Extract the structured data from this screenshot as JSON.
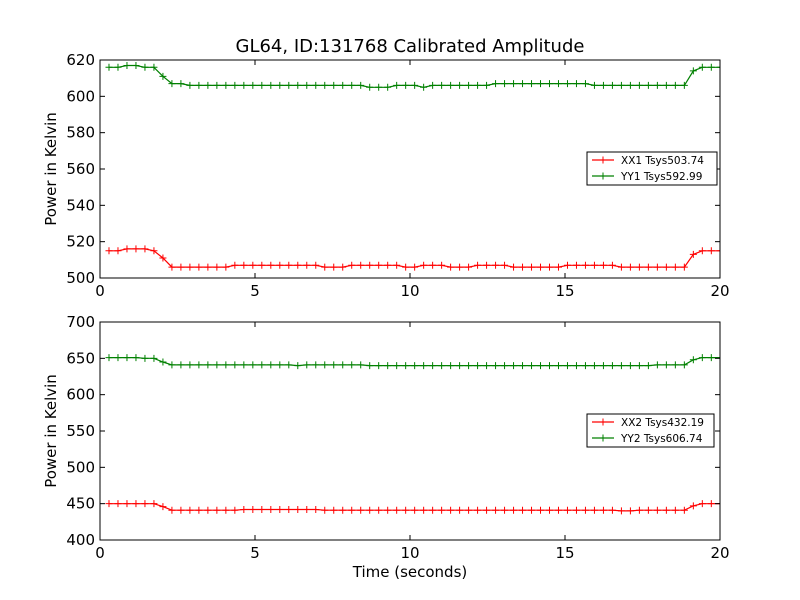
{
  "figure": {
    "title": "GL64, ID:131768 Calibrated Amplitude",
    "xlabel": "Time (seconds)"
  },
  "chart_data": [
    {
      "type": "line",
      "title": "GL64, ID:131768 Calibrated Amplitude",
      "xlabel": "",
      "ylabel": "Power in Kelvin",
      "xlim": [
        0,
        20
      ],
      "ylim": [
        500,
        620
      ],
      "xticks": [
        0,
        5,
        10,
        15,
        20
      ],
      "yticks": [
        500,
        520,
        540,
        560,
        580,
        600,
        620
      ],
      "grid": false,
      "legend_position": "center-right",
      "marker": "plus",
      "x": [
        0.29,
        0.58,
        0.87,
        1.16,
        1.45,
        1.74,
        2.03,
        2.32,
        2.61,
        2.9,
        3.19,
        3.48,
        3.77,
        4.06,
        4.35,
        4.64,
        4.93,
        5.22,
        5.51,
        5.8,
        6.09,
        6.38,
        6.67,
        6.96,
        7.25,
        7.54,
        7.83,
        8.12,
        8.41,
        8.7,
        8.99,
        9.28,
        9.57,
        9.86,
        10.15,
        10.44,
        10.73,
        11.02,
        11.31,
        11.6,
        11.89,
        12.18,
        12.47,
        12.76,
        13.05,
        13.34,
        13.63,
        13.92,
        14.21,
        14.5,
        14.79,
        15.08,
        15.37,
        15.66,
        15.95,
        16.24,
        16.53,
        16.82,
        17.11,
        17.4,
        17.69,
        17.98,
        18.27,
        18.56,
        18.85,
        19.14,
        19.43,
        19.72,
        20.0
      ],
      "series": [
        {
          "name": "XX1 Tsys503.74",
          "color": "#ff0000",
          "values": [
            515,
            515,
            516,
            516,
            516,
            515,
            511,
            506,
            506,
            506,
            506,
            506,
            506,
            506,
            507,
            507,
            507,
            507,
            507,
            507,
            507,
            507,
            507,
            507,
            506,
            506,
            506,
            507,
            507,
            507,
            507,
            507,
            507,
            506,
            506,
            507,
            507,
            507,
            506,
            506,
            506,
            507,
            507,
            507,
            507,
            506,
            506,
            506,
            506,
            506,
            506,
            507,
            507,
            507,
            507,
            507,
            507,
            506,
            506,
            506,
            506,
            506,
            506,
            506,
            506,
            513,
            515,
            515,
            515
          ]
        },
        {
          "name": "YY1 Tsys592.99",
          "color": "#008000",
          "values": [
            616,
            616,
            617,
            617,
            616,
            616,
            611,
            607,
            607,
            606,
            606,
            606,
            606,
            606,
            606,
            606,
            606,
            606,
            606,
            606,
            606,
            606,
            606,
            606,
            606,
            606,
            606,
            606,
            606,
            605,
            605,
            605,
            606,
            606,
            606,
            605,
            606,
            606,
            606,
            606,
            606,
            606,
            606,
            607,
            607,
            607,
            607,
            607,
            607,
            607,
            607,
            607,
            607,
            607,
            606,
            606,
            606,
            606,
            606,
            606,
            606,
            606,
            606,
            606,
            606,
            614,
            616,
            616,
            616
          ]
        }
      ]
    },
    {
      "type": "line",
      "title": "",
      "xlabel": "Time (seconds)",
      "ylabel": "Power in Kelvin",
      "xlim": [
        0,
        20
      ],
      "ylim": [
        400,
        700
      ],
      "xticks": [
        0,
        5,
        10,
        15,
        20
      ],
      "yticks": [
        400,
        450,
        500,
        550,
        600,
        650,
        700
      ],
      "grid": false,
      "legend_position": "center-right",
      "marker": "plus",
      "x": [
        0.29,
        0.58,
        0.87,
        1.16,
        1.45,
        1.74,
        2.03,
        2.32,
        2.61,
        2.9,
        3.19,
        3.48,
        3.77,
        4.06,
        4.35,
        4.64,
        4.93,
        5.22,
        5.51,
        5.8,
        6.09,
        6.38,
        6.67,
        6.96,
        7.25,
        7.54,
        7.83,
        8.12,
        8.41,
        8.7,
        8.99,
        9.28,
        9.57,
        9.86,
        10.15,
        10.44,
        10.73,
        11.02,
        11.31,
        11.6,
        11.89,
        12.18,
        12.47,
        12.76,
        13.05,
        13.34,
        13.63,
        13.92,
        14.21,
        14.5,
        14.79,
        15.08,
        15.37,
        15.66,
        15.95,
        16.24,
        16.53,
        16.82,
        17.11,
        17.4,
        17.69,
        17.98,
        18.27,
        18.56,
        18.85,
        19.14,
        19.43,
        19.72,
        20.0
      ],
      "series": [
        {
          "name": "XX2 Tsys432.19",
          "color": "#ff0000",
          "values": [
            450,
            450,
            450,
            450,
            450,
            450,
            446,
            441,
            441,
            441,
            441,
            441,
            441,
            441,
            441,
            442,
            442,
            442,
            442,
            442,
            442,
            442,
            442,
            442,
            441,
            441,
            441,
            441,
            441,
            441,
            441,
            441,
            441,
            441,
            441,
            441,
            441,
            441,
            441,
            441,
            441,
            441,
            441,
            441,
            441,
            441,
            441,
            441,
            441,
            441,
            441,
            441,
            441,
            441,
            441,
            441,
            441,
            440,
            440,
            441,
            441,
            441,
            441,
            441,
            441,
            447,
            450,
            450,
            450
          ]
        },
        {
          "name": "YY2 Tsys606.74",
          "color": "#008000",
          "values": [
            651,
            651,
            651,
            651,
            650,
            650,
            645,
            641,
            641,
            641,
            641,
            641,
            641,
            641,
            641,
            641,
            641,
            641,
            641,
            641,
            641,
            640,
            641,
            641,
            641,
            641,
            641,
            641,
            641,
            640,
            640,
            640,
            640,
            640,
            640,
            640,
            640,
            640,
            640,
            640,
            640,
            640,
            640,
            640,
            640,
            640,
            640,
            640,
            640,
            640,
            640,
            640,
            640,
            640,
            640,
            640,
            640,
            640,
            640,
            640,
            640,
            641,
            641,
            641,
            641,
            648,
            651,
            651,
            651
          ]
        }
      ]
    }
  ]
}
